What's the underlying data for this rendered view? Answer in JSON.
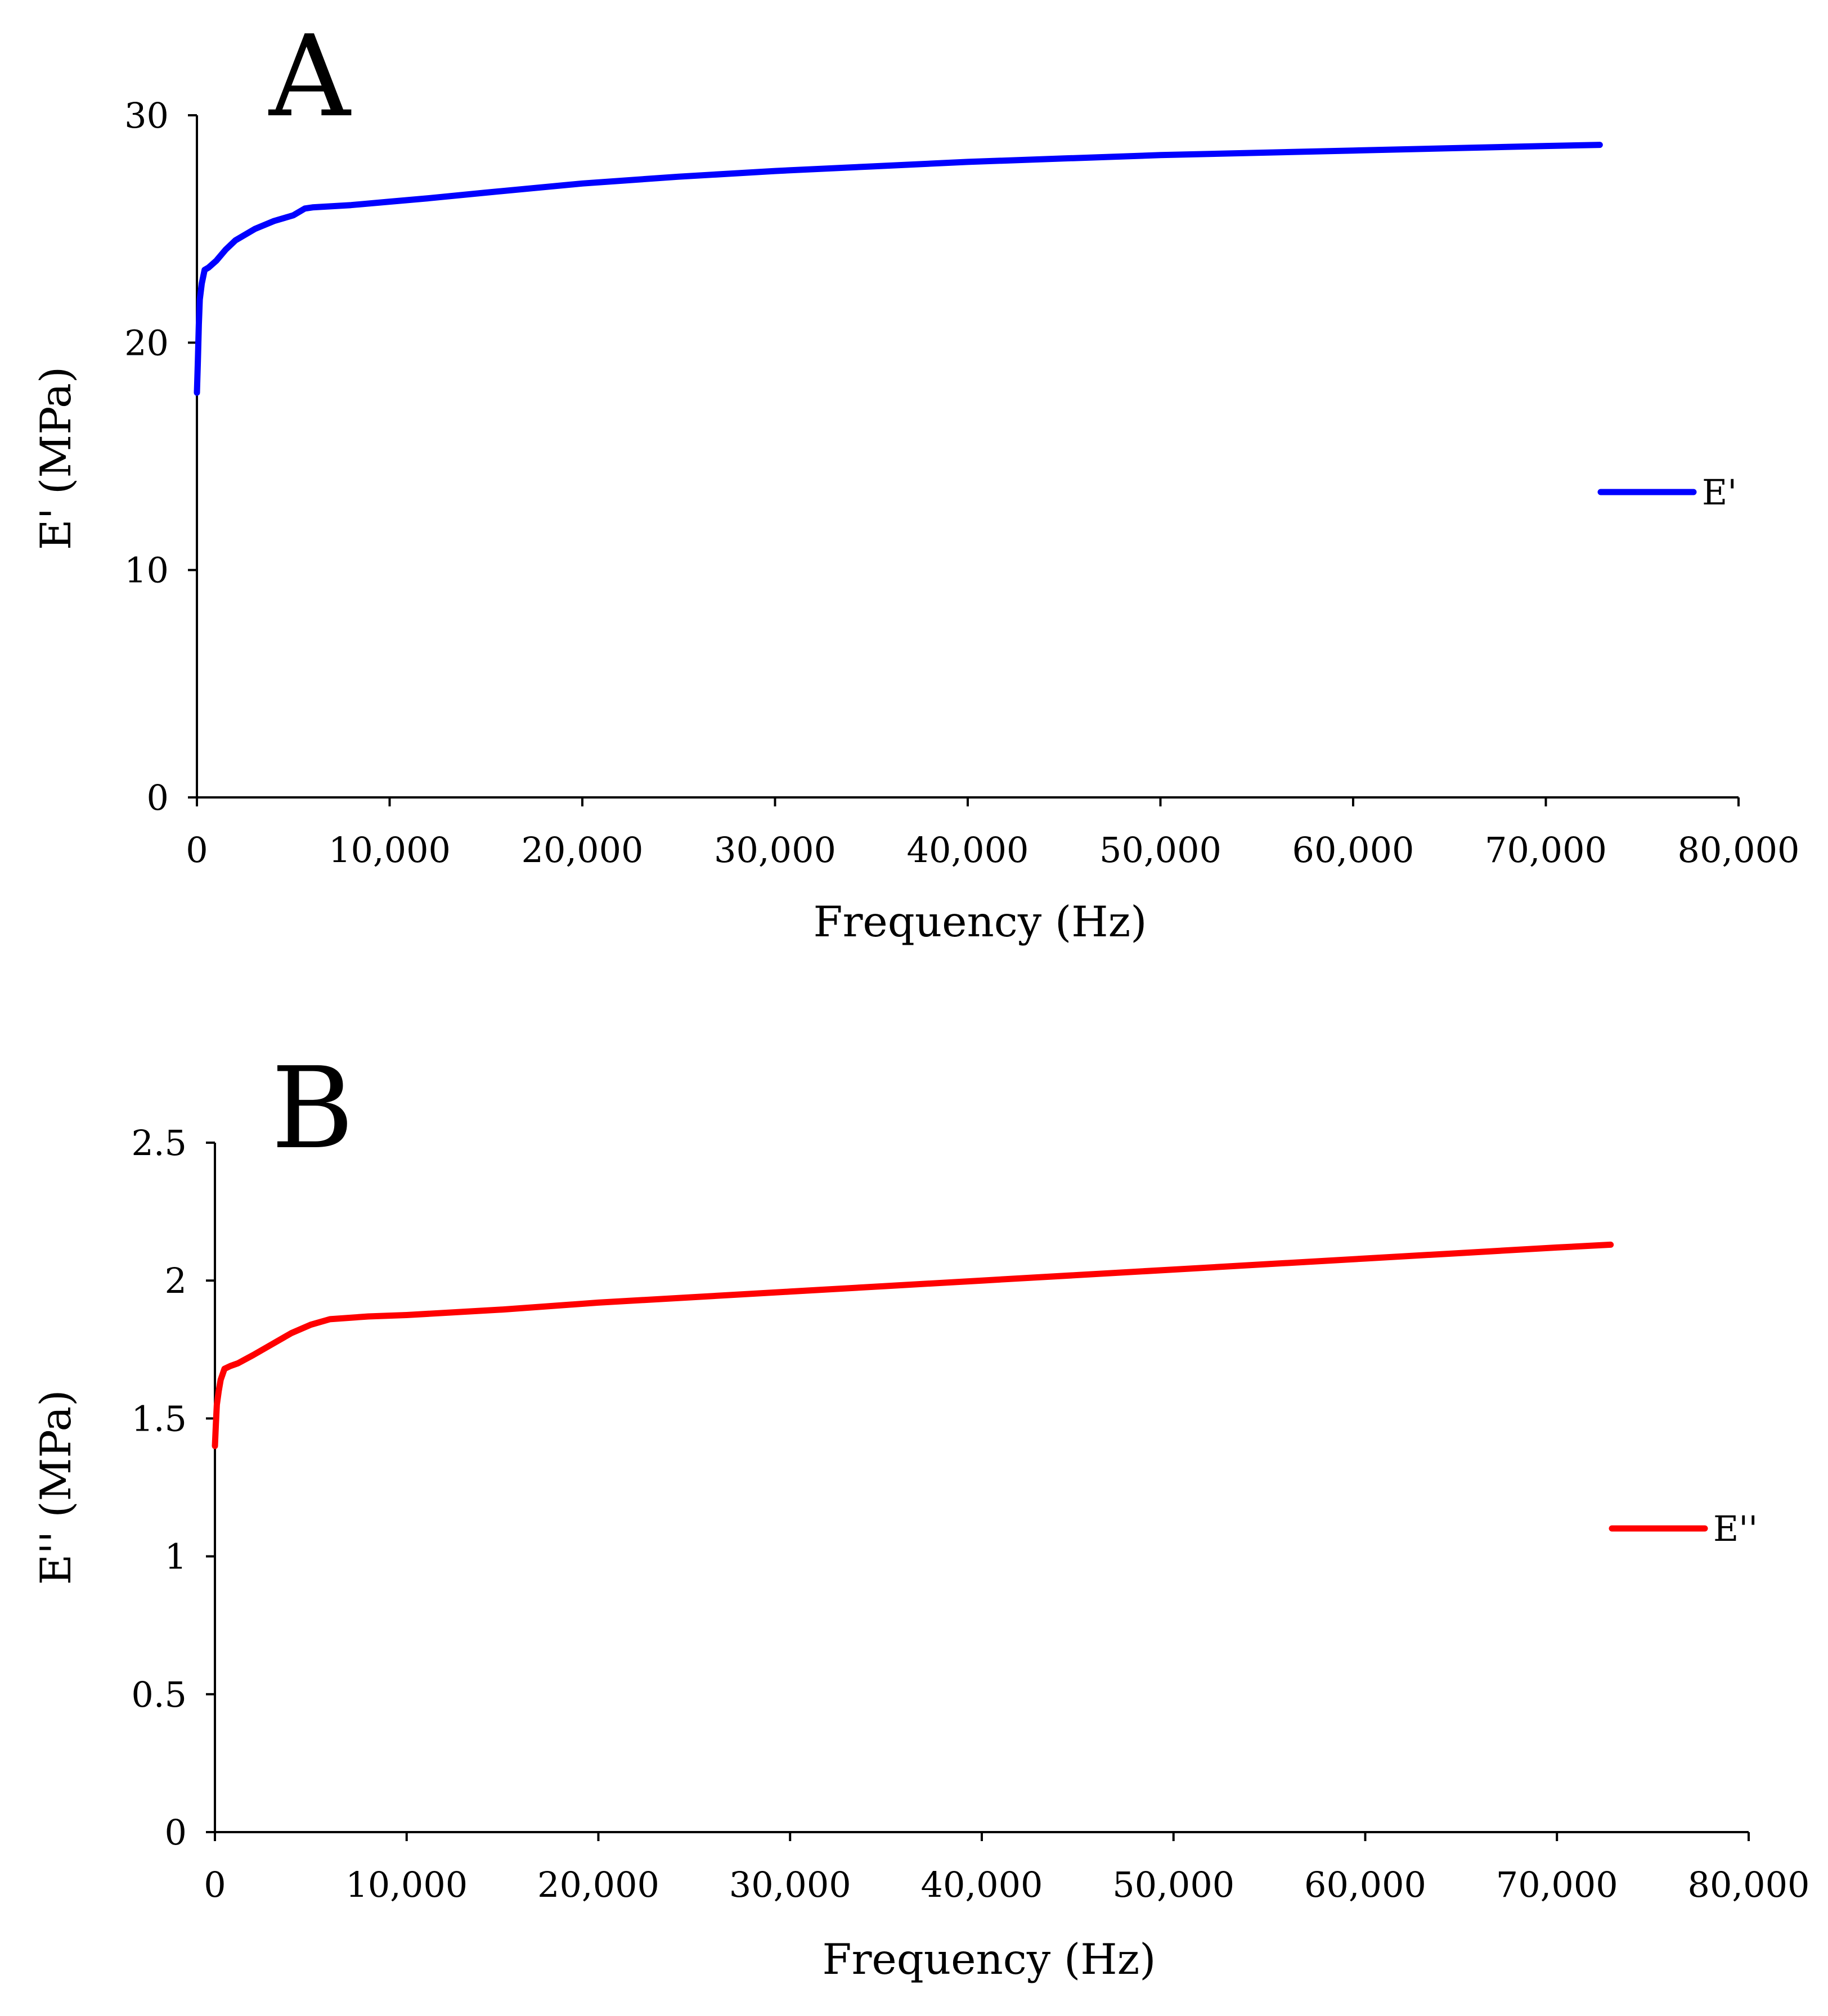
{
  "chart_data": [
    {
      "type": "line",
      "panel_label": "A",
      "title": "",
      "xlabel": "Frequency (Hz)",
      "ylabel": "E' (MPa)",
      "xlim": [
        0,
        80000
      ],
      "ylim": [
        0,
        30
      ],
      "x_ticks": [
        0,
        10000,
        20000,
        30000,
        40000,
        50000,
        60000,
        70000,
        80000
      ],
      "x_tick_labels": [
        "0",
        "10,000",
        "20,000",
        "30,000",
        "40,000",
        "50,000",
        "60,000",
        "70,000",
        "80,000"
      ],
      "y_ticks": [
        0,
        10,
        20,
        30
      ],
      "y_tick_labels": [
        "0",
        "10",
        "20",
        "30"
      ],
      "grid": false,
      "legend": "right",
      "series": [
        {
          "name": "E'",
          "color": "#0000ff",
          "x": [
            0,
            50,
            100,
            150,
            250,
            400,
            600,
            1000,
            1500,
            2000,
            3000,
            4000,
            5000,
            5600,
            6000,
            8000,
            10000,
            12000,
            15000,
            20000,
            25000,
            30000,
            35000,
            40000,
            45000,
            50000,
            55000,
            60000,
            65000,
            70000,
            72800
          ],
          "y": [
            17.8,
            19.2,
            20.8,
            21.9,
            22.6,
            23.2,
            23.3,
            23.6,
            24.1,
            24.5,
            25.0,
            25.35,
            25.6,
            25.9,
            25.95,
            26.05,
            26.2,
            26.35,
            26.6,
            27.0,
            27.3,
            27.55,
            27.75,
            27.95,
            28.1,
            28.25,
            28.35,
            28.45,
            28.55,
            28.65,
            28.7
          ]
        }
      ]
    },
    {
      "type": "line",
      "panel_label": "B",
      "title": "",
      "xlabel": "Frequency (Hz)",
      "ylabel": "E'' (MPa)",
      "xlim": [
        0,
        80000
      ],
      "ylim": [
        0,
        2.5
      ],
      "x_ticks": [
        0,
        10000,
        20000,
        30000,
        40000,
        50000,
        60000,
        70000,
        80000
      ],
      "x_tick_labels": [
        "0",
        "10,000",
        "20,000",
        "30,000",
        "40,000",
        "50,000",
        "60,000",
        "70,000",
        "80,000"
      ],
      "y_ticks": [
        0,
        0.5,
        1,
        1.5,
        2,
        2.5
      ],
      "y_tick_labels": [
        "0",
        "0.5",
        "1",
        "1.5",
        "2",
        "2.5"
      ],
      "grid": false,
      "legend": "right",
      "series": [
        {
          "name": "E''",
          "color": "#ff0000",
          "x": [
            0,
            50,
            100,
            200,
            300,
            500,
            800,
            1200,
            2000,
            3000,
            4000,
            5000,
            6000,
            8000,
            10000,
            15000,
            20000,
            25000,
            30000,
            35000,
            40000,
            45000,
            50000,
            55000,
            60000,
            65000,
            70000,
            72800
          ],
          "y": [
            1.4,
            1.48,
            1.55,
            1.6,
            1.64,
            1.68,
            1.69,
            1.7,
            1.73,
            1.77,
            1.81,
            1.84,
            1.86,
            1.87,
            1.875,
            1.895,
            1.92,
            1.94,
            1.96,
            1.98,
            2.0,
            2.02,
            2.04,
            2.06,
            2.08,
            2.1,
            2.12,
            2.13
          ]
        }
      ]
    }
  ]
}
